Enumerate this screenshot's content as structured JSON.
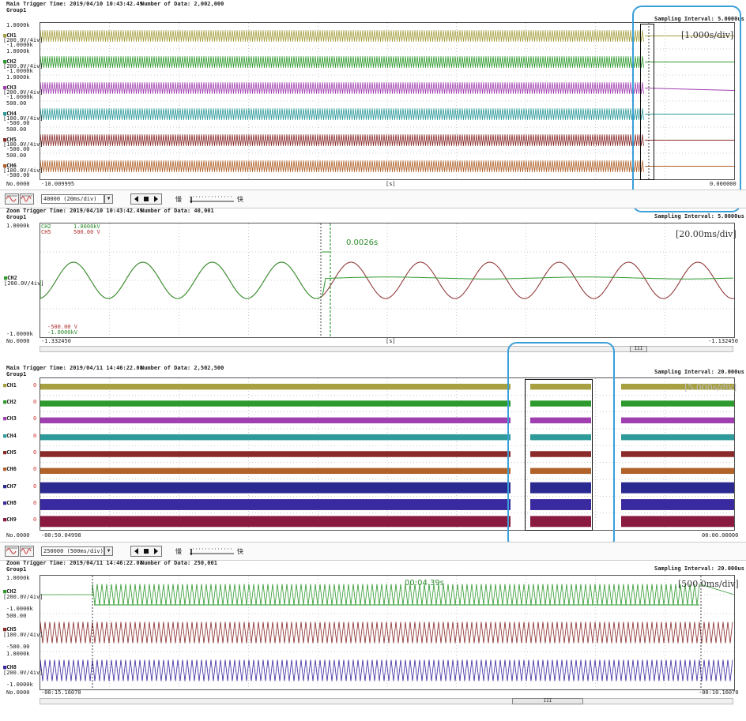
{
  "colors": {
    "ch1": "#a6a040",
    "ch2": "#2e9a2e",
    "ch3": "#a040b0",
    "ch4": "#2e9a9a",
    "ch5": "#8a2a2a",
    "ch6": "#b0622a",
    "ch7": "#2a2a90",
    "ch8": "#3a2aa0",
    "ch9": "#8a1a40",
    "highlight": "#3aa0d8"
  },
  "panel1": {
    "title": "Main Trigger Time: 2019/04/10 10:43:42.49",
    "data_count": "Number of Data: 2,002,000",
    "group": "Group1",
    "sampling": "Sampling Interval:  5.0000us",
    "div": "[1.000s/div]",
    "channels": [
      {
        "name": "CH1",
        "scale": "[200.0V/4iv]",
        "top": "1.0000k",
        "bottom": "-1.0000k"
      },
      {
        "name": "CH2",
        "scale": "[200.0V/4iv]",
        "top": "1.0000k",
        "bottom": "-1.0000k"
      },
      {
        "name": "CH3",
        "scale": "[200.0V/4iv]",
        "top": "1.0000k",
        "bottom": "-1.0000k"
      },
      {
        "name": "CH4",
        "scale": "[100.0V/4iv]",
        "top": "500.00",
        "bottom": "-500.00"
      },
      {
        "name": "CH5",
        "scale": "[100.0V/4iv]",
        "top": "500.00",
        "bottom": "-500.00"
      },
      {
        "name": "CH6",
        "scale": "[100.0V/4iv]",
        "top": "500.00",
        "bottom": "-500.00"
      }
    ],
    "no": "No.0000",
    "x_start": "-10.009995",
    "x_unit": "[s]",
    "x_end": "0.000000"
  },
  "toolbar1": {
    "select": "40000  (20ms/div)",
    "slow": "慢",
    "fast": "快"
  },
  "panel2": {
    "title": "Zoom Trigger Time: 2019/04/10 10:43:42.49",
    "data_count": "Number of Data: 40,001",
    "group": "Group1",
    "sampling": "Sampling Interval:  5.0000us",
    "div": "[20.00ms/div]",
    "top": "1.0000k",
    "bottom": "-1.0000k",
    "legend_ch2": "CH2",
    "legend_ch5": "CH5",
    "legend_v1": "1.0000kV",
    "legend_v2": "500.00 V",
    "legend_v3": "-500.00 V",
    "legend_v4": "-1.0000kV",
    "ch_label": "CH2",
    "ch_scale": "[200.0V/4iv]",
    "delta": "0.0026s",
    "no": "No.0000",
    "x_start": "-1.332450",
    "x_unit": "[s]",
    "x_end": "-1.132450",
    "scroll": "III"
  },
  "panel3": {
    "title": "Main Trigger Time: 2019/04/11 14:46:22.08",
    "data_count": "Number of Data: 2,502,500",
    "group": "Group1",
    "sampling": "Sampling Interval:  20.000us",
    "div": "[5.000s/div]",
    "channels": [
      "CH1",
      "CH2",
      "CH3",
      "CH4",
      "CH5",
      "CH6",
      "CH7",
      "CH8",
      "CH9"
    ],
    "zero": "0",
    "no": "No.0000",
    "x_start": "-00:50.04998",
    "x_end": "00:00.00000"
  },
  "toolbar2": {
    "select": "250000  (500ms/div)",
    "slow": "慢",
    "fast": "快"
  },
  "panel4": {
    "title": "Zoom Trigger Time: 2019/04/11 14:46:22.08",
    "data_count": "Number of Data: 250,001",
    "group": "Group1",
    "sampling": "Sampling Interval:  20.000us",
    "div": "[500.0ms/div]",
    "delta": "00:04.39s",
    "channels": [
      {
        "name": "CH2",
        "scale": "[200.0V/4iv]",
        "top": "1.0000k",
        "bottom": "-1.0000k"
      },
      {
        "name": "CH5",
        "scale": "[100.0V/4iv]",
        "top": "500.00",
        "bottom": "-500.00"
      },
      {
        "name": "CH8",
        "scale": "[200.0V/4iv]",
        "top": "1.0000k",
        "bottom": "-1.0000k"
      }
    ],
    "no": "No.0000",
    "x_start": "-00:15.16070",
    "x_end": "-00:10.16070",
    "scroll": "III"
  }
}
